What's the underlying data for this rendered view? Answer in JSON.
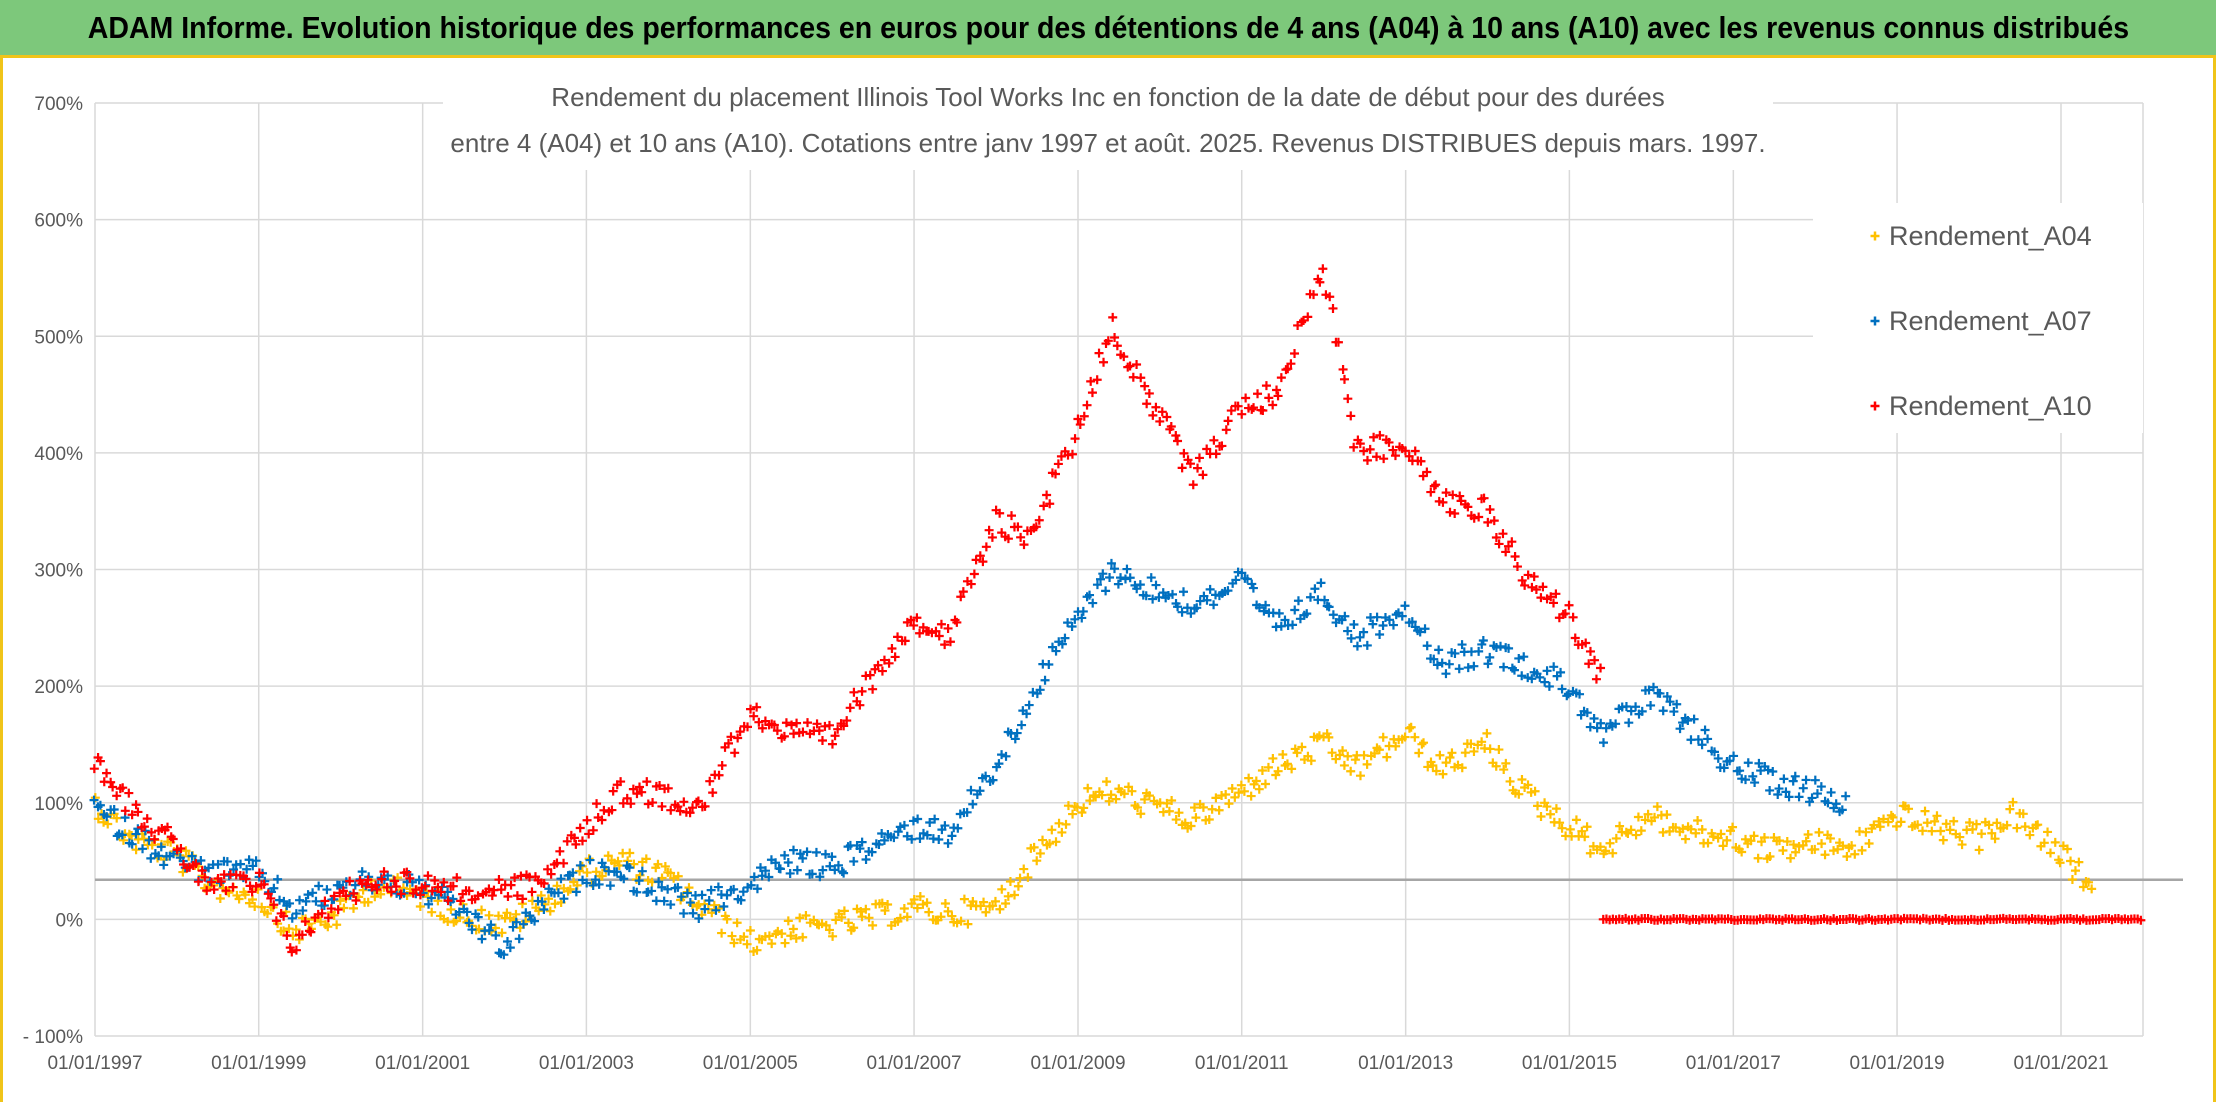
{
  "header": {
    "title": "ADAM Informe. Evolution historique des performances en euros pour des détentions de 4 ans (A04) à 10 ans (A10) avec les revenus connus distribués"
  },
  "colors": {
    "header_bg": "#7dc87b",
    "frame_accent": "#f0c419",
    "A04": "#ffc000",
    "A07": "#0070c0",
    "A10": "#ff0000",
    "reference_line": "#a6a6a6",
    "grid": "#d9d9d9"
  },
  "chart_data": {
    "type": "scatter",
    "title_lines": [
      "Rendement du placement Illinois Tool Works Inc en fonction de la date de début pour des durées",
      "entre 4 (A04) et 10 ans (A10). Cotations entre janv 1997 et août. 2025. Revenus DISTRIBUES depuis mars. 1997."
    ],
    "xlabel": "",
    "ylabel": "",
    "ylim": [
      -100,
      700
    ],
    "xlim": [
      "1997-01-01",
      "2022-01-01"
    ],
    "y_ticks": [
      "- 100%",
      "0%",
      "100%",
      "200%",
      "300%",
      "400%",
      "500%",
      "600%",
      "700%"
    ],
    "x_ticks": [
      "01/01/1997",
      "01/01/1999",
      "01/01/2001",
      "01/01/2003",
      "01/01/2005",
      "01/01/2007",
      "01/01/2009",
      "01/01/2011",
      "01/01/2013",
      "01/01/2015",
      "01/01/2017",
      "01/01/2019",
      "01/01/2021"
    ],
    "grid": true,
    "legend_position": "top-right",
    "reference_line_value": 34,
    "series": [
      {
        "name": "Rendement_A04",
        "color": "#ffc000",
        "points": [
          [
            "1997-01-01",
            100
          ],
          [
            "1997-06-01",
            70
          ],
          [
            "1998-01-01",
            55
          ],
          [
            "1998-06-01",
            30
          ],
          [
            "1999-01-01",
            20
          ],
          [
            "1999-06-01",
            -10
          ],
          [
            "2000-01-01",
            5
          ],
          [
            "2000-06-01",
            30
          ],
          [
            "2001-01-01",
            20
          ],
          [
            "2001-06-01",
            5
          ],
          [
            "2002-01-01",
            -5
          ],
          [
            "2002-06-01",
            10
          ],
          [
            "2003-01-01",
            40
          ],
          [
            "2003-06-01",
            50
          ],
          [
            "2004-01-01",
            35
          ],
          [
            "2004-06-01",
            10
          ],
          [
            "2005-01-01",
            -20
          ],
          [
            "2005-06-01",
            -10
          ],
          [
            "2006-01-01",
            -5
          ],
          [
            "2006-06-01",
            0
          ],
          [
            "2007-01-01",
            10
          ],
          [
            "2007-06-01",
            5
          ],
          [
            "2008-01-01",
            10
          ],
          [
            "2008-06-01",
            50
          ],
          [
            "2009-01-01",
            100
          ],
          [
            "2009-06-01",
            110
          ],
          [
            "2010-01-01",
            95
          ],
          [
            "2010-06-01",
            85
          ],
          [
            "2011-01-01",
            110
          ],
          [
            "2011-06-01",
            130
          ],
          [
            "2012-01-01",
            150
          ],
          [
            "2012-06-01",
            130
          ],
          [
            "2013-01-01",
            160
          ],
          [
            "2013-06-01",
            130
          ],
          [
            "2014-01-01",
            150
          ],
          [
            "2014-06-01",
            110
          ],
          [
            "2015-01-01",
            80
          ],
          [
            "2015-06-01",
            60
          ],
          [
            "2016-01-01",
            90
          ],
          [
            "2016-06-01",
            75
          ],
          [
            "2017-01-01",
            70
          ],
          [
            "2017-06-01",
            60
          ],
          [
            "2018-01-01",
            65
          ],
          [
            "2018-06-01",
            60
          ],
          [
            "2019-01-01",
            90
          ],
          [
            "2019-06-01",
            80
          ],
          [
            "2020-01-01",
            70
          ],
          [
            "2020-06-01",
            90
          ],
          [
            "2021-01-01",
            55
          ],
          [
            "2021-06-01",
            25
          ]
        ]
      },
      {
        "name": "Rendement_A07",
        "color": "#0070c0",
        "points": [
          [
            "1997-01-01",
            95
          ],
          [
            "1997-06-01",
            75
          ],
          [
            "1998-01-01",
            50
          ],
          [
            "1998-06-01",
            40
          ],
          [
            "1999-01-01",
            40
          ],
          [
            "1999-06-01",
            10
          ],
          [
            "2000-01-01",
            25
          ],
          [
            "2000-06-01",
            35
          ],
          [
            "2001-01-01",
            25
          ],
          [
            "2001-06-01",
            10
          ],
          [
            "2002-01-01",
            -25
          ],
          [
            "2002-06-01",
            10
          ],
          [
            "2003-01-01",
            40
          ],
          [
            "2003-06-01",
            40
          ],
          [
            "2004-01-01",
            20
          ],
          [
            "2004-06-01",
            10
          ],
          [
            "2005-01-01",
            30
          ],
          [
            "2005-06-01",
            50
          ],
          [
            "2006-01-01",
            45
          ],
          [
            "2006-06-01",
            60
          ],
          [
            "2007-01-01",
            80
          ],
          [
            "2007-06-01",
            75
          ],
          [
            "2008-01-01",
            130
          ],
          [
            "2008-06-01",
            190
          ],
          [
            "2009-01-01",
            260
          ],
          [
            "2009-06-01",
            300
          ],
          [
            "2010-01-01",
            280
          ],
          [
            "2010-06-01",
            270
          ],
          [
            "2011-01-01",
            290
          ],
          [
            "2011-06-01",
            250
          ],
          [
            "2012-01-01",
            280
          ],
          [
            "2012-06-01",
            240
          ],
          [
            "2013-01-01",
            270
          ],
          [
            "2013-06-01",
            220
          ],
          [
            "2014-01-01",
            230
          ],
          [
            "2014-06-01",
            220
          ],
          [
            "2015-01-01",
            200
          ],
          [
            "2015-06-01",
            160
          ],
          [
            "2016-01-01",
            190
          ],
          [
            "2016-06-01",
            170
          ],
          [
            "2017-01-01",
            130
          ],
          [
            "2017-06-01",
            120
          ],
          [
            "2018-01-01",
            110
          ],
          [
            "2018-06-01",
            100
          ]
        ]
      },
      {
        "name": "Rendement_A10",
        "color": "#ff0000",
        "points": [
          [
            "1997-01-01",
            140
          ],
          [
            "1997-06-01",
            100
          ],
          [
            "1998-01-01",
            60
          ],
          [
            "1998-06-01",
            30
          ],
          [
            "1999-01-01",
            30
          ],
          [
            "1999-06-01",
            -20
          ],
          [
            "2000-01-01",
            20
          ],
          [
            "2000-06-01",
            35
          ],
          [
            "2001-01-01",
            30
          ],
          [
            "2001-06-01",
            25
          ],
          [
            "2002-01-01",
            25
          ],
          [
            "2002-06-01",
            30
          ],
          [
            "2003-01-01",
            80
          ],
          [
            "2003-06-01",
            110
          ],
          [
            "2004-01-01",
            105
          ],
          [
            "2004-06-01",
            100
          ],
          [
            "2005-01-01",
            180
          ],
          [
            "2005-06-01",
            160
          ],
          [
            "2006-01-01",
            155
          ],
          [
            "2006-06-01",
            200
          ],
          [
            "2007-01-01",
            260
          ],
          [
            "2007-06-01",
            240
          ],
          [
            "2008-01-01",
            340
          ],
          [
            "2008-06-01",
            330
          ],
          [
            "2009-01-01",
            420
          ],
          [
            "2009-06-01",
            510
          ],
          [
            "2010-01-01",
            430
          ],
          [
            "2010-06-01",
            380
          ],
          [
            "2011-01-01",
            440
          ],
          [
            "2011-06-01",
            450
          ],
          [
            "2012-01-01",
            560
          ],
          [
            "2012-06-01",
            400
          ],
          [
            "2013-01-01",
            410
          ],
          [
            "2013-06-01",
            360
          ],
          [
            "2014-01-01",
            350
          ],
          [
            "2014-06-01",
            300
          ],
          [
            "2015-01-01",
            260
          ],
          [
            "2015-06-01",
            200
          ]
        ],
        "zero_segment": {
          "from": "2015-06-01",
          "to": "2022-01-01",
          "value": 0
        }
      }
    ]
  }
}
